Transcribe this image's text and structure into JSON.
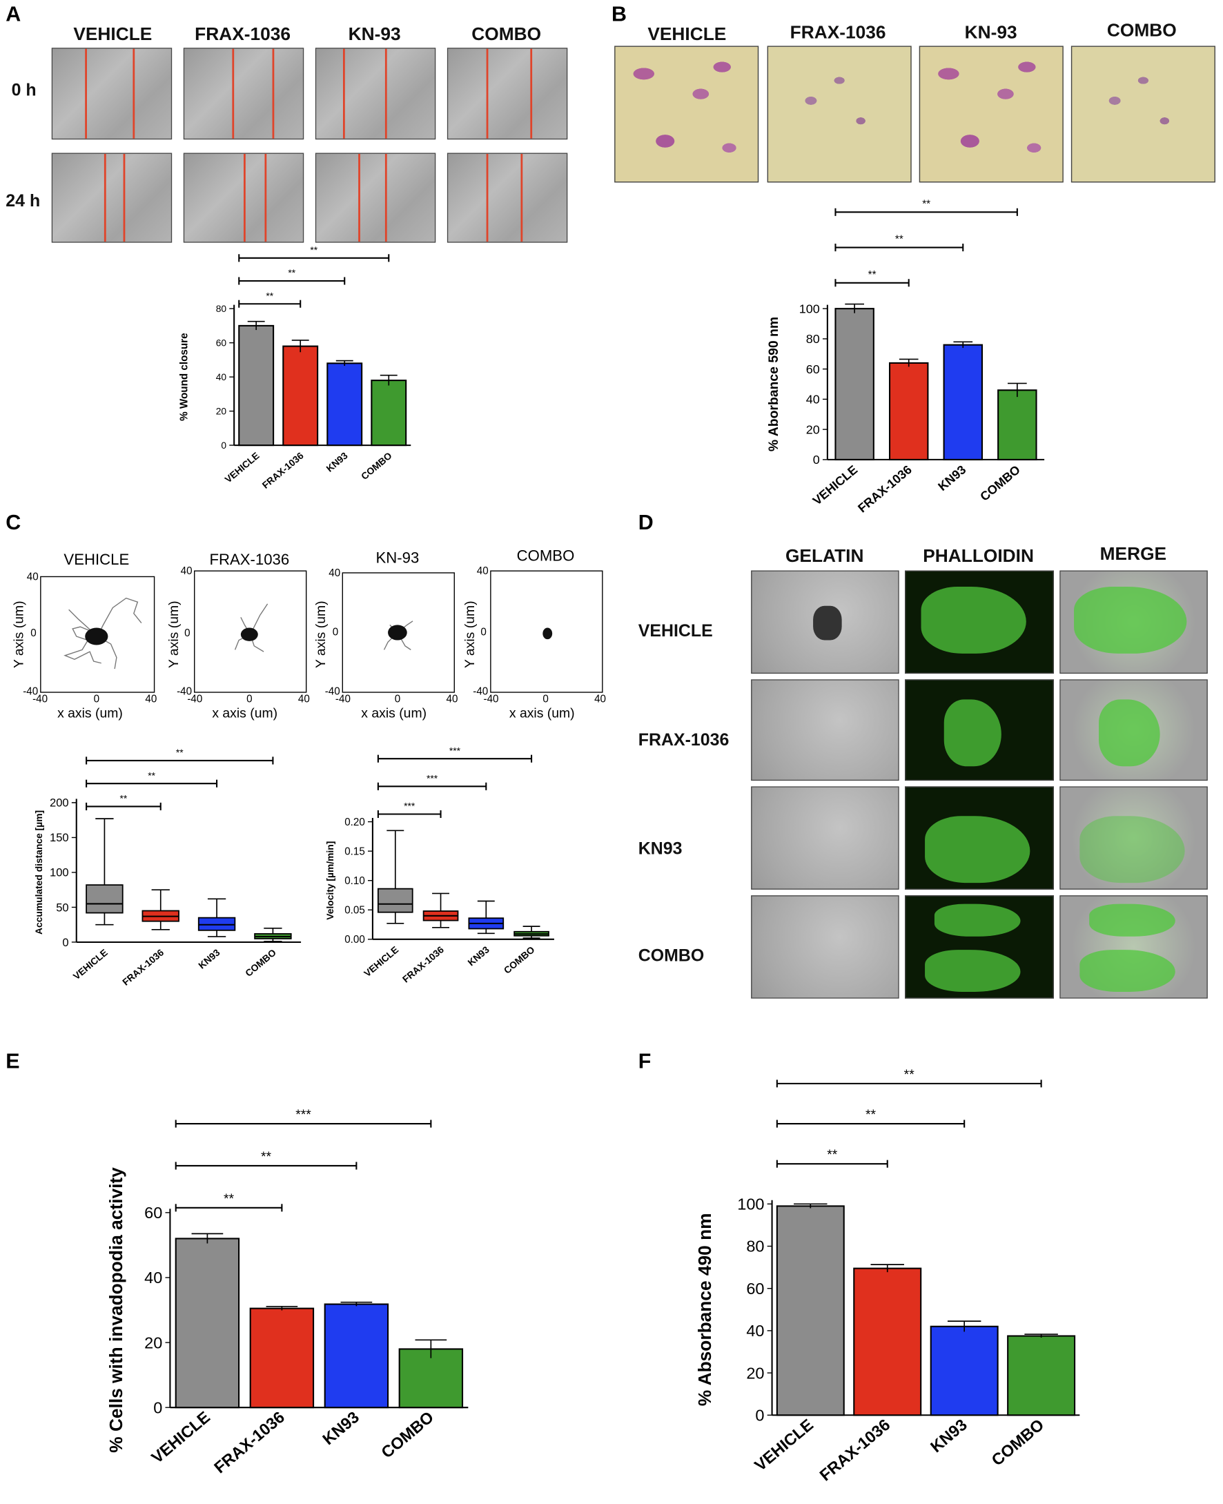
{
  "panels": {
    "A": "A",
    "B": "B",
    "C": "C",
    "D": "D",
    "E": "E",
    "F": "F"
  },
  "groups_header": [
    "VEHICLE",
    "FRAX-1036",
    "KN-93",
    "COMBO"
  ],
  "panelA": {
    "row_labels": [
      "0 h",
      "24 h"
    ]
  },
  "panelC": {
    "titles": [
      "VEHICLE",
      "FRAX-1036",
      "KN-93",
      "COMBO"
    ],
    "xlabel": "x axis (um)",
    "ylabel": "Y axis (um)",
    "ticks": [
      "40",
      "0",
      "-40"
    ],
    "xticks": [
      "-40",
      "0",
      "40"
    ]
  },
  "panelD": {
    "col_headers": [
      "GELATIN",
      "PHALLOIDIN",
      "MERGE"
    ],
    "row_labels": [
      "VEHICLE",
      "FRAX-1036",
      "KN93",
      "COMBO"
    ]
  },
  "colors": {
    "VEHICLE": "#8c8c8c",
    "FRAX-1036": "#e0301e",
    "KN93": "#1f3cf0",
    "COMBO": "#3f9a2f"
  },
  "chart_data": [
    {
      "id": "A",
      "type": "bar",
      "categories": [
        "VEHICLE",
        "FRAX-1036",
        "KN93",
        "COMBO"
      ],
      "values": [
        70,
        58,
        48,
        38
      ],
      "errors": [
        2.5,
        3.5,
        1.5,
        3
      ],
      "ylabel": "% Wound closure",
      "ylim": [
        0,
        80
      ],
      "yticks": [
        0,
        20,
        40,
        60,
        80
      ],
      "significance": [
        {
          "from": 0,
          "to": 1,
          "label": "**"
        },
        {
          "from": 0,
          "to": 2,
          "label": "**"
        },
        {
          "from": 0,
          "to": 3,
          "label": "**"
        }
      ]
    },
    {
      "id": "B",
      "type": "bar",
      "categories": [
        "VEHICLE",
        "FRAX-1036",
        "KN93",
        "COMBO"
      ],
      "values": [
        100,
        64,
        76,
        46
      ],
      "errors": [
        3,
        2.5,
        2,
        4.5
      ],
      "ylabel": "% Aborbance 590 nm",
      "ylim": [
        0,
        100
      ],
      "yticks": [
        0,
        20,
        40,
        60,
        80,
        100
      ],
      "significance": [
        {
          "from": 0,
          "to": 1,
          "label": "**"
        },
        {
          "from": 0,
          "to": 2,
          "label": "**"
        },
        {
          "from": 0,
          "to": 3,
          "label": "**"
        }
      ]
    },
    {
      "id": "C1",
      "type": "box",
      "categories": [
        "VEHICLE",
        "FRAX-1036",
        "KN93",
        "COMBO"
      ],
      "boxes": [
        {
          "min": 25,
          "q1": 42,
          "median": 55,
          "q3": 82,
          "max": 177
        },
        {
          "min": 18,
          "q1": 30,
          "median": 37,
          "q3": 45,
          "max": 75
        },
        {
          "min": 8,
          "q1": 17,
          "median": 25,
          "q3": 35,
          "max": 62
        },
        {
          "min": 1,
          "q1": 5,
          "median": 8,
          "q3": 12,
          "max": 20
        }
      ],
      "ylabel": "Accumulated distance [µm]",
      "ylim": [
        0,
        200
      ],
      "yticks": [
        0,
        50,
        100,
        150,
        200
      ],
      "significance": [
        {
          "from": 0,
          "to": 1,
          "label": "**"
        },
        {
          "from": 0,
          "to": 2,
          "label": "**"
        },
        {
          "from": 0,
          "to": 3,
          "label": "**"
        }
      ]
    },
    {
      "id": "C2",
      "type": "box",
      "categories": [
        "VEHICLE",
        "FRAX-1036",
        "KN93",
        "COMBO"
      ],
      "boxes": [
        {
          "min": 0.027,
          "q1": 0.046,
          "median": 0.06,
          "q3": 0.086,
          "max": 0.185
        },
        {
          "min": 0.02,
          "q1": 0.032,
          "median": 0.04,
          "q3": 0.048,
          "max": 0.078
        },
        {
          "min": 0.01,
          "q1": 0.018,
          "median": 0.027,
          "q3": 0.036,
          "max": 0.065
        },
        {
          "min": 0.002,
          "q1": 0.006,
          "median": 0.009,
          "q3": 0.013,
          "max": 0.022
        }
      ],
      "ylabel": "Velocity [µm/min]",
      "ylim": [
        0,
        0.2
      ],
      "yticks": [
        "0.00",
        "0.05",
        "0.10",
        "0.15",
        "0.20"
      ],
      "significance": [
        {
          "from": 0,
          "to": 1,
          "label": "***"
        },
        {
          "from": 0,
          "to": 2,
          "label": "***"
        },
        {
          "from": 0,
          "to": 3,
          "label": "***"
        }
      ]
    },
    {
      "id": "E",
      "type": "bar",
      "categories": [
        "VEHICLE",
        "FRAX-1036",
        "KN93",
        "COMBO"
      ],
      "values": [
        52,
        30.5,
        31.8,
        18
      ],
      "errors": [
        1.5,
        0.6,
        0.6,
        2.8
      ],
      "ylabel": "% Cells with invadopodia activity",
      "ylim": [
        0,
        60
      ],
      "yticks": [
        0,
        20,
        40,
        60
      ],
      "significance": [
        {
          "from": 0,
          "to": 1,
          "label": "**"
        },
        {
          "from": 0,
          "to": 2,
          "label": "**"
        },
        {
          "from": 0,
          "to": 3,
          "label": "***"
        }
      ]
    },
    {
      "id": "F",
      "type": "bar",
      "categories": [
        "VEHICLE",
        "FRAX-1036",
        "KN93",
        "COMBO"
      ],
      "values": [
        99,
        69.5,
        42,
        37.5
      ],
      "errors": [
        1,
        1.8,
        2.5,
        0.8
      ],
      "ylabel": "% Absorbance 490 nm",
      "ylim": [
        0,
        100
      ],
      "yticks": [
        0,
        20,
        40,
        60,
        80,
        100
      ],
      "significance": [
        {
          "from": 0,
          "to": 1,
          "label": "**"
        },
        {
          "from": 0,
          "to": 2,
          "label": "**"
        },
        {
          "from": 0,
          "to": 3,
          "label": "**"
        }
      ]
    }
  ]
}
